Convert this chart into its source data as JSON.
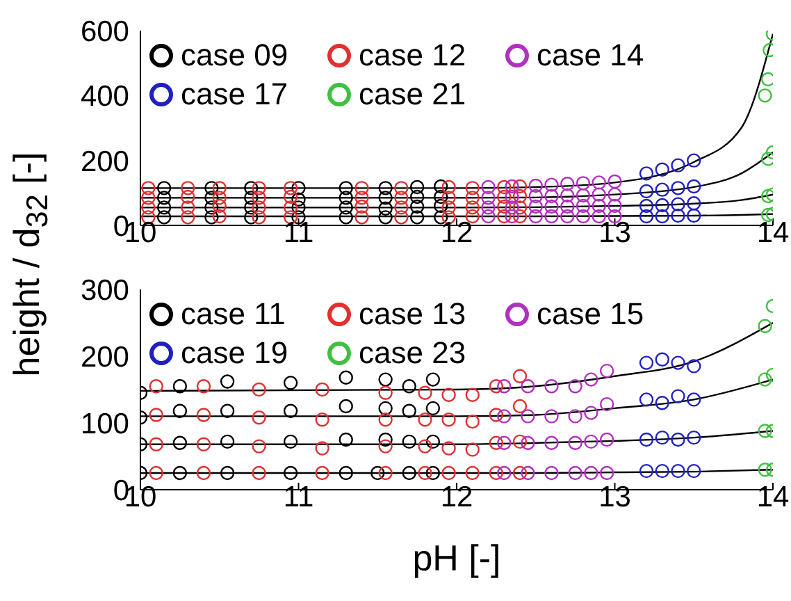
{
  "chart_data": [
    {
      "type": "scatter",
      "ylabel": "height / d$_{32}$ [-]",
      "xlim": [
        10,
        14
      ],
      "xticks": [
        10,
        11,
        12,
        13,
        14
      ],
      "ylim": [
        0,
        600
      ],
      "yticks": [
        0,
        200,
        400,
        600
      ],
      "legend": "top left",
      "marker": "circle",
      "series": [
        {
          "name": "case 09",
          "color": "#000000",
          "x": [
            10.15,
            10.45,
            10.7,
            11.0,
            11.3,
            11.55,
            11.75,
            11.9,
            10.15,
            10.45,
            10.7,
            11.0,
            11.3,
            11.55,
            11.75,
            11.9,
            10.15,
            10.45,
            10.7,
            11.0,
            11.3,
            11.55,
            11.75,
            11.9,
            10.15,
            10.45,
            10.7,
            11.0,
            11.3,
            11.55,
            11.75,
            11.9
          ],
          "values": [
            115,
            115,
            115,
            115,
            115,
            115,
            118,
            120,
            85,
            85,
            85,
            80,
            85,
            85,
            88,
            88,
            55,
            55,
            55,
            55,
            55,
            52,
            58,
            60,
            25,
            25,
            25,
            25,
            25,
            25,
            25,
            25
          ]
        },
        {
          "name": "case 12",
          "color": "#e03030",
          "x": [
            10.05,
            10.3,
            10.5,
            10.75,
            10.95,
            11.4,
            11.65,
            11.95,
            12.1,
            12.3,
            12.4,
            10.05,
            10.3,
            10.5,
            10.75,
            10.95,
            11.4,
            11.65,
            11.95,
            12.1,
            12.3,
            12.4,
            10.05,
            10.3,
            10.5,
            10.75,
            10.95,
            11.4,
            11.65,
            11.95,
            12.1,
            12.3,
            12.4,
            10.05,
            10.3,
            10.5,
            10.75,
            10.95,
            11.4,
            11.65,
            11.95,
            12.1,
            12.3,
            12.4
          ],
          "values": [
            115,
            115,
            115,
            115,
            115,
            115,
            115,
            118,
            115,
            118,
            120,
            85,
            88,
            85,
            85,
            88,
            85,
            85,
            85,
            85,
            88,
            90,
            55,
            55,
            60,
            55,
            55,
            58,
            55,
            55,
            55,
            58,
            55,
            25,
            25,
            28,
            25,
            25,
            25,
            25,
            25,
            28,
            28,
            28
          ]
        },
        {
          "name": "case 14",
          "color": "#b030c0",
          "x": [
            12.2,
            12.35,
            12.5,
            12.6,
            12.7,
            12.8,
            12.9,
            13.0,
            12.2,
            12.35,
            12.5,
            12.6,
            12.7,
            12.8,
            12.9,
            13.0,
            12.2,
            12.35,
            12.5,
            12.6,
            12.7,
            12.8,
            12.9,
            13.0,
            12.2,
            12.35,
            12.5,
            12.6,
            12.7,
            12.8,
            12.9,
            13.0
          ],
          "values": [
            118,
            120,
            122,
            125,
            128,
            130,
            132,
            135,
            85,
            88,
            90,
            90,
            92,
            92,
            95,
            95,
            55,
            55,
            58,
            58,
            58,
            60,
            60,
            60,
            28,
            28,
            28,
            28,
            28,
            28,
            28,
            28
          ]
        },
        {
          "name": "case 17",
          "color": "#2020c0",
          "x": [
            13.2,
            13.3,
            13.4,
            13.5,
            13.2,
            13.3,
            13.4,
            13.5,
            13.2,
            13.3,
            13.4,
            13.5,
            13.2,
            13.3,
            13.4,
            13.5
          ],
          "values": [
            160,
            172,
            185,
            200,
            105,
            110,
            115,
            120,
            60,
            62,
            65,
            68,
            28,
            28,
            30,
            30
          ]
        },
        {
          "name": "case 21",
          "color": "#40c040",
          "x": [
            13.95,
            13.97,
            13.98,
            14.0,
            13.97,
            14.0,
            13.97,
            14.0,
            13.97,
            14.0
          ],
          "values": [
            400,
            450,
            540,
            590,
            205,
            225,
            90,
            95,
            32,
            35
          ]
        },
        {
          "type": "line",
          "color": "#000000",
          "marker": "none",
          "x": [
            10,
            12,
            12.5,
            13,
            13.5,
            13.8,
            14
          ],
          "values": [
            115,
            115,
            118,
            132,
            195,
            300,
            590
          ]
        },
        {
          "type": "line",
          "color": "#000000",
          "marker": "none",
          "x": [
            10,
            12,
            12.5,
            13,
            13.5,
            13.8,
            14
          ],
          "values": [
            85,
            85,
            86,
            95,
            118,
            160,
            225
          ]
        },
        {
          "type": "line",
          "color": "#000000",
          "marker": "none",
          "x": [
            10,
            12,
            12.5,
            13,
            13.5,
            13.8,
            14
          ],
          "values": [
            55,
            55,
            56,
            60,
            67,
            78,
            95
          ]
        },
        {
          "type": "line",
          "color": "#000000",
          "marker": "none",
          "x": [
            10,
            12,
            12.5,
            13,
            13.5,
            13.8,
            14
          ],
          "values": [
            28,
            28,
            28,
            29,
            30,
            32,
            35
          ]
        }
      ]
    },
    {
      "type": "scatter",
      "xlabel": "pH [-]",
      "xlim": [
        10,
        14
      ],
      "xticks": [
        10,
        11,
        12,
        13,
        14
      ],
      "ylim": [
        0,
        300
      ],
      "yticks": [
        0,
        100,
        200,
        300
      ],
      "legend": "top left",
      "marker": "circle",
      "series": [
        {
          "name": "case 11",
          "color": "#000000",
          "x": [
            10.0,
            10.25,
            10.55,
            10.95,
            11.3,
            11.55,
            11.7,
            11.85,
            10.0,
            10.25,
            10.55,
            10.95,
            11.3,
            11.55,
            11.7,
            11.85,
            10.0,
            10.25,
            10.55,
            10.95,
            11.3,
            11.55,
            11.7,
            11.85,
            10.0,
            10.25,
            10.55,
            10.95,
            11.3,
            11.5,
            11.7,
            11.85
          ],
          "values": [
            145,
            155,
            162,
            160,
            168,
            165,
            155,
            165,
            108,
            118,
            118,
            118,
            125,
            122,
            118,
            122,
            68,
            70,
            72,
            72,
            75,
            75,
            72,
            72,
            25,
            25,
            25,
            25,
            25,
            25,
            25,
            25
          ]
        },
        {
          "name": "case 13",
          "color": "#e03030",
          "x": [
            10.1,
            10.4,
            10.75,
            11.15,
            11.55,
            11.8,
            11.95,
            12.1,
            12.25,
            12.4,
            10.1,
            10.4,
            10.75,
            11.15,
            11.55,
            11.8,
            11.95,
            12.1,
            12.25,
            12.4,
            10.1,
            10.4,
            10.75,
            11.15,
            11.55,
            11.8,
            11.95,
            12.1,
            12.25,
            12.4,
            10.1,
            10.4,
            10.75,
            11.15,
            11.55,
            11.8,
            11.95,
            12.1,
            12.25,
            12.4
          ],
          "values": [
            155,
            155,
            150,
            150,
            145,
            145,
            142,
            142,
            155,
            170,
            112,
            112,
            108,
            105,
            105,
            105,
            105,
            102,
            112,
            125,
            68,
            68,
            65,
            62,
            65,
            65,
            62,
            60,
            70,
            72,
            25,
            25,
            25,
            25,
            25,
            25,
            25,
            25,
            25,
            25
          ]
        },
        {
          "name": "case 15",
          "color": "#b030c0",
          "x": [
            12.3,
            12.45,
            12.6,
            12.75,
            12.85,
            12.95,
            12.3,
            12.45,
            12.6,
            12.75,
            12.85,
            12.95,
            12.3,
            12.45,
            12.6,
            12.75,
            12.85,
            12.95,
            12.3,
            12.45,
            12.6,
            12.75,
            12.85,
            12.95
          ],
          "values": [
            155,
            155,
            155,
            155,
            165,
            178,
            110,
            110,
            110,
            110,
            115,
            128,
            70,
            70,
            70,
            70,
            72,
            75,
            25,
            25,
            25,
            25,
            25,
            25
          ]
        },
        {
          "name": "case 19",
          "color": "#2020c0",
          "x": [
            13.2,
            13.3,
            13.4,
            13.5,
            13.2,
            13.3,
            13.4,
            13.5,
            13.2,
            13.3,
            13.4,
            13.5,
            13.2,
            13.3,
            13.4,
            13.5
          ],
          "values": [
            190,
            195,
            190,
            185,
            135,
            130,
            140,
            135,
            75,
            78,
            75,
            78,
            28,
            28,
            28,
            28
          ]
        },
        {
          "name": "case 23",
          "color": "#40c040",
          "x": [
            13.95,
            14.0,
            13.95,
            14.0,
            13.95,
            14.0,
            13.95,
            14.0
          ],
          "values": [
            245,
            275,
            165,
            172,
            88,
            88,
            30,
            30
          ]
        },
        {
          "type": "line",
          "color": "#000000",
          "marker": "none",
          "x": [
            10,
            12,
            12.5,
            13,
            13.5,
            14
          ],
          "values": [
            148,
            150,
            155,
            170,
            192,
            250
          ]
        },
        {
          "type": "line",
          "color": "#000000",
          "marker": "none",
          "x": [
            10,
            12,
            12.5,
            13,
            13.5,
            14
          ],
          "values": [
            110,
            110,
            112,
            122,
            135,
            165
          ]
        },
        {
          "type": "line",
          "color": "#000000",
          "marker": "none",
          "x": [
            10,
            12,
            12.5,
            13,
            13.5,
            14
          ],
          "values": [
            68,
            68,
            70,
            73,
            78,
            88
          ]
        },
        {
          "type": "line",
          "color": "#000000",
          "marker": "none",
          "x": [
            10,
            12,
            12.5,
            13,
            13.5,
            14
          ],
          "values": [
            25,
            25,
            25,
            26,
            27,
            30
          ]
        }
      ]
    }
  ]
}
